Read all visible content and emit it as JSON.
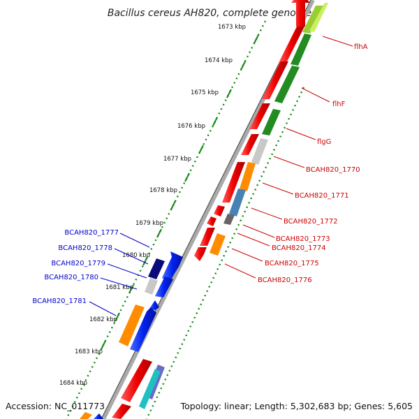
{
  "title": "Bacillus cereus AH820, complete genome",
  "footer": {
    "accession": "Accession: NC_011773",
    "summary": "Topology: linear; Length: 5,302,683 bp; Genes: 5,605"
  },
  "ticks": [
    {
      "label": "1673 kbp"
    },
    {
      "label": "1674 kbp"
    },
    {
      "label": "1675 kbp"
    },
    {
      "label": "1676 kbp"
    },
    {
      "label": "1677 kbp"
    },
    {
      "label": "1678 kbp"
    },
    {
      "label": "1679 kbp"
    },
    {
      "label": "1680 kbp"
    },
    {
      "label": "1681 kbp"
    },
    {
      "label": "1682 kbp"
    },
    {
      "label": "1683 kbp"
    },
    {
      "label": "1684 kbp"
    }
  ],
  "forward_labels": [
    {
      "label": "flhA"
    },
    {
      "label": "flhF"
    },
    {
      "label": "flgG"
    },
    {
      "label": "BCAH820_1770"
    },
    {
      "label": "BCAH820_1771"
    },
    {
      "label": "BCAH820_1772"
    },
    {
      "label": "BCAH820_1773"
    },
    {
      "label": "BCAH820_1774"
    },
    {
      "label": "BCAH820_1775"
    },
    {
      "label": "BCAH820_1776"
    }
  ],
  "reverse_labels": [
    {
      "label": "BCAH820_1777"
    },
    {
      "label": "BCAH820_1778"
    },
    {
      "label": "BCAH820_1779"
    },
    {
      "label": "BCAH820_1780"
    },
    {
      "label": "BCAH820_1781"
    }
  ],
  "colors": {
    "forward_gene": "#ee0000",
    "reverse_gene": "#0022ee",
    "cog_green": "#228b22",
    "cog_lime": "#9acd32",
    "cog_gray": "#c8c8c8",
    "cog_orange": "#ff8c00",
    "cog_steelblue": "#4682b4",
    "cog_darkgray": "#666666",
    "cog_navy": "#0a0a7a",
    "backbone": "#777777",
    "tick": "#118811"
  }
}
